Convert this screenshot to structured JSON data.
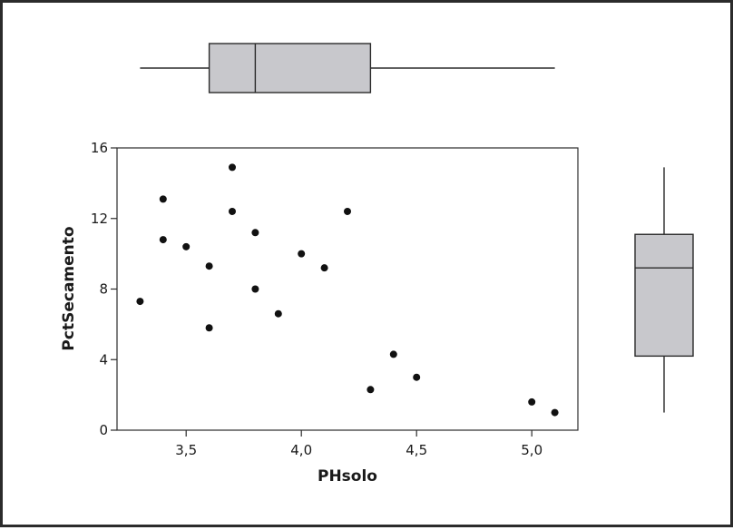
{
  "chart_data": {
    "type": "scatter",
    "xlabel": "PHsolo",
    "ylabel": "PctSecamento",
    "xlim": [
      3.2,
      5.2
    ],
    "ylim": [
      0,
      16
    ],
    "xticks": [
      3.5,
      4.0,
      4.5,
      5.0
    ],
    "xtick_labels": [
      "3,5",
      "4,0",
      "4,5",
      "5,0"
    ],
    "yticks": [
      0,
      4,
      8,
      12,
      16
    ],
    "ytick_labels": [
      "0",
      "4",
      "8",
      "12",
      "16"
    ],
    "points": [
      {
        "x": 3.3,
        "y": 7.3
      },
      {
        "x": 3.4,
        "y": 13.1
      },
      {
        "x": 3.4,
        "y": 10.8
      },
      {
        "x": 3.5,
        "y": 10.4
      },
      {
        "x": 3.6,
        "y": 9.3
      },
      {
        "x": 3.6,
        "y": 5.8
      },
      {
        "x": 3.7,
        "y": 14.9
      },
      {
        "x": 3.7,
        "y": 12.4
      },
      {
        "x": 3.8,
        "y": 11.2
      },
      {
        "x": 3.8,
        "y": 8.0
      },
      {
        "x": 3.9,
        "y": 6.6
      },
      {
        "x": 4.0,
        "y": 10.0
      },
      {
        "x": 4.1,
        "y": 9.2
      },
      {
        "x": 4.2,
        "y": 12.4
      },
      {
        "x": 4.3,
        "y": 2.3
      },
      {
        "x": 4.4,
        "y": 4.3
      },
      {
        "x": 4.5,
        "y": 3.0
      },
      {
        "x": 5.0,
        "y": 1.6
      },
      {
        "x": 5.1,
        "y": 1.0
      }
    ],
    "marginal_boxplot_x": {
      "min": 3.3,
      "q1": 3.6,
      "median": 3.8,
      "q3": 4.3,
      "max": 5.1
    },
    "marginal_boxplot_y": {
      "min": 1.0,
      "q1": 4.2,
      "median": 9.2,
      "q3": 11.1,
      "max": 14.9
    },
    "box_fill": "#c8c8cc",
    "point_color": "#111111"
  }
}
